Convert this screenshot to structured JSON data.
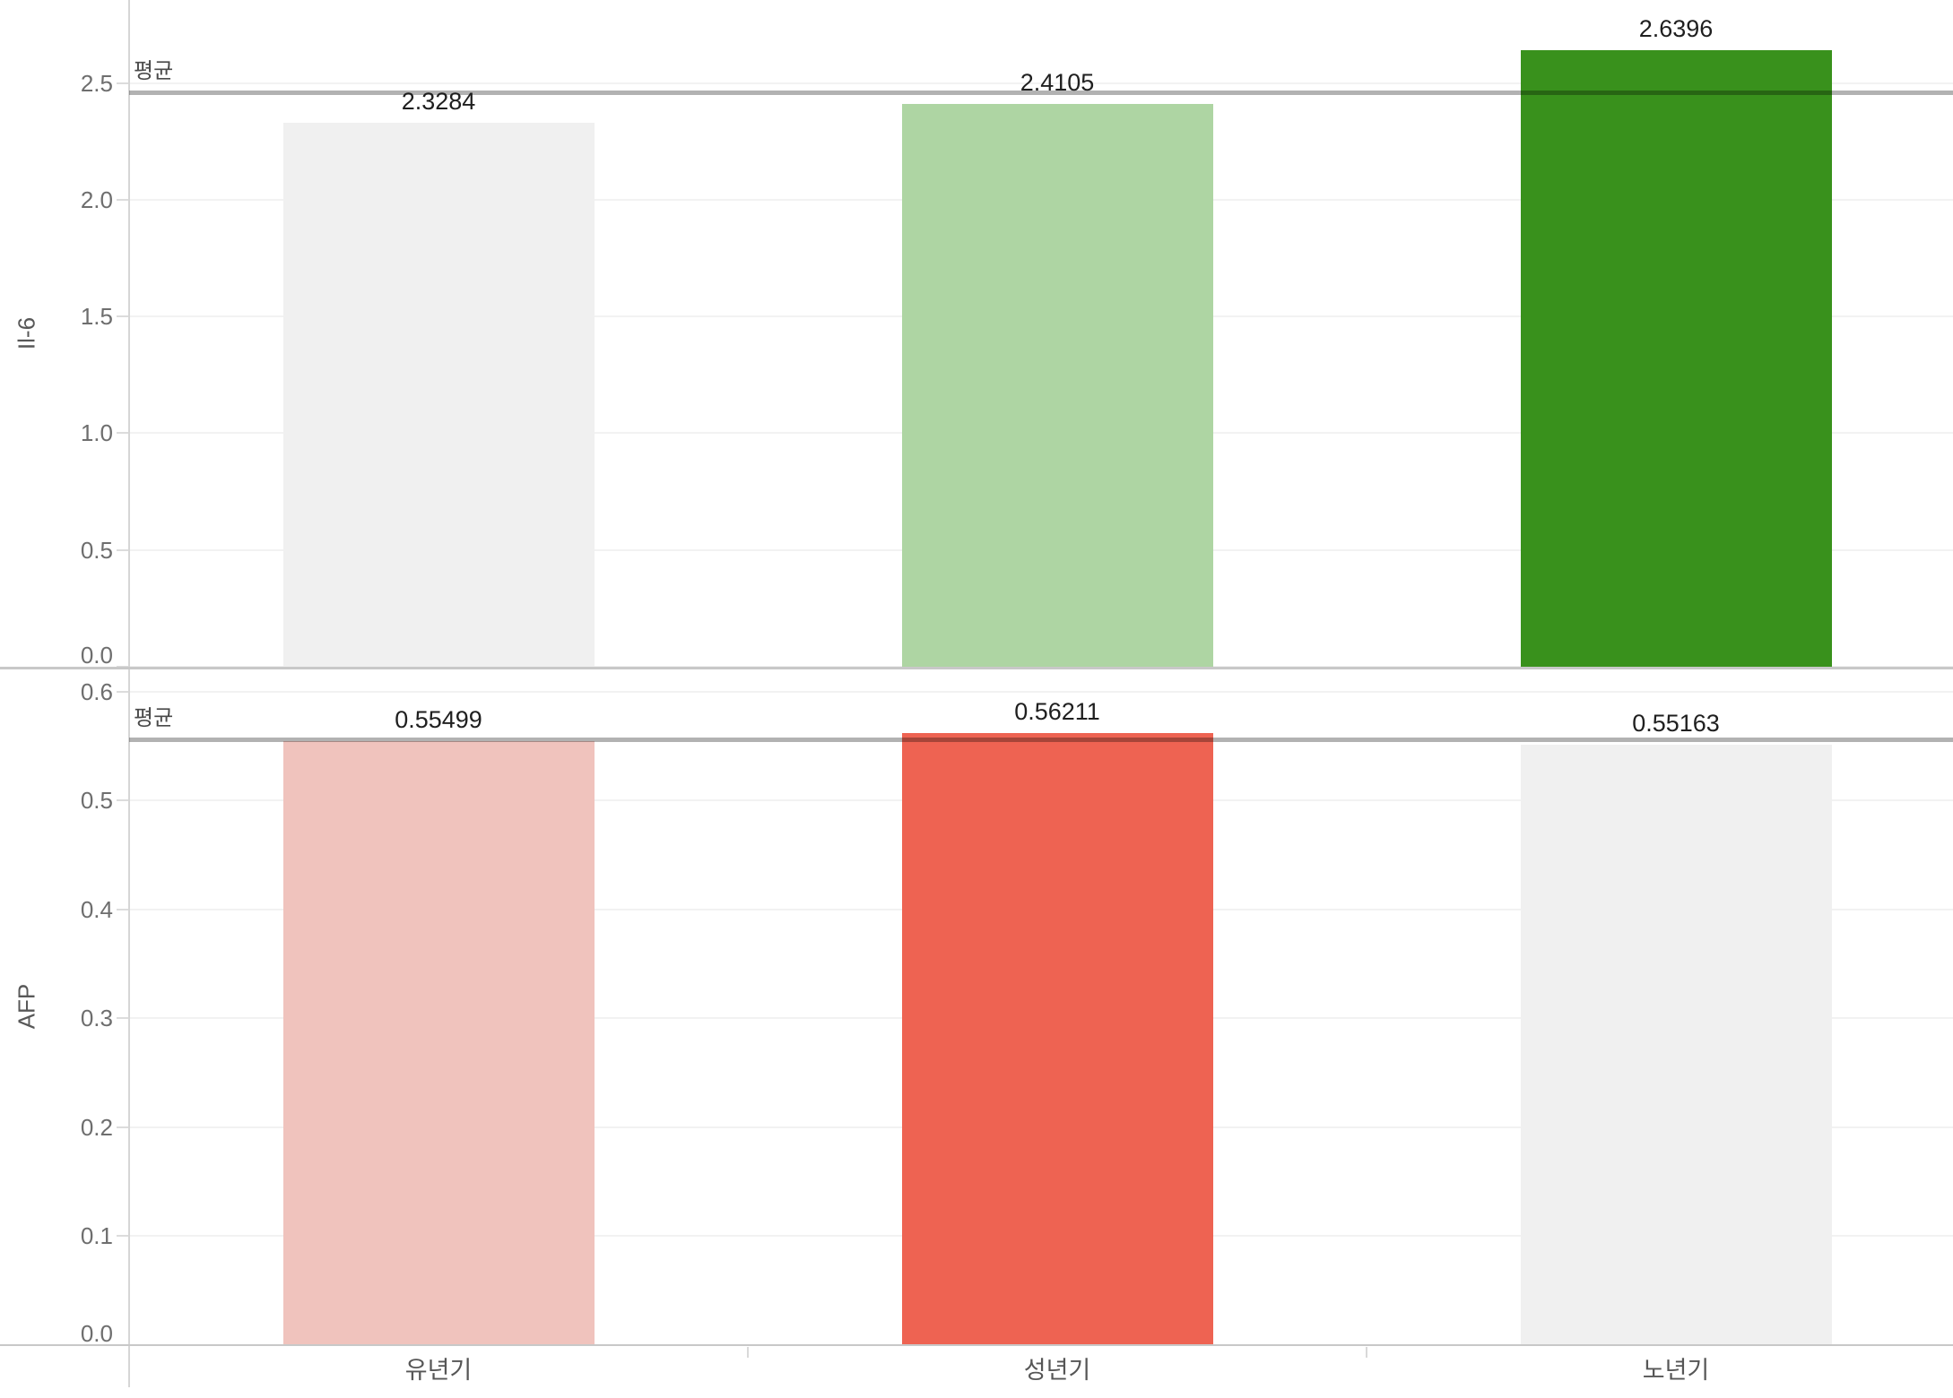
{
  "chart_data": {
    "type": "bar",
    "title": "",
    "categories": [
      "유년기",
      "성년기",
      "노년기"
    ],
    "grid": true,
    "legend": false,
    "panels": [
      {
        "ylabel": "Il-6",
        "values": [
          2.3284,
          2.4105,
          2.6396
        ],
        "value_labels": [
          "2.3284",
          "2.4105",
          "2.6396"
        ],
        "bar_colors": [
          "#f0f0f0",
          "#aed5a3",
          "#39911c"
        ],
        "yticks": [
          0,
          0.5,
          1,
          1.5,
          2,
          2.5
        ],
        "ytick_labels": [
          "0.0",
          "0.5",
          "1.0",
          "1.5",
          "2.0",
          "2.5"
        ],
        "ylim": [
          0,
          2.855
        ],
        "reference_line": {
          "label": "평균",
          "value": 2.4595
        }
      },
      {
        "ylabel": "AFP",
        "values": [
          0.55499,
          0.56211,
          0.55163
        ],
        "value_labels": [
          "0.55499",
          "0.56211",
          "0.55163"
        ],
        "bar_colors": [
          "#f0c3bd",
          "#ee6352",
          "#f0f0f0"
        ],
        "yticks": [
          0,
          0.1,
          0.2,
          0.3,
          0.4,
          0.5,
          0.6
        ],
        "ytick_labels": [
          "0.0",
          "0.1",
          "0.2",
          "0.3",
          "0.4",
          "0.5",
          "0.6"
        ],
        "ylim": [
          0,
          0.623
        ],
        "reference_line": {
          "label": "평균",
          "value": 0.55624
        }
      }
    ],
    "colors": {
      "reference_line": "rgba(0,0,0,0.30)",
      "gridline": "#f2f2f2",
      "axis_line": "#d6d6d6",
      "panel_border": "#c8c8c8"
    }
  }
}
